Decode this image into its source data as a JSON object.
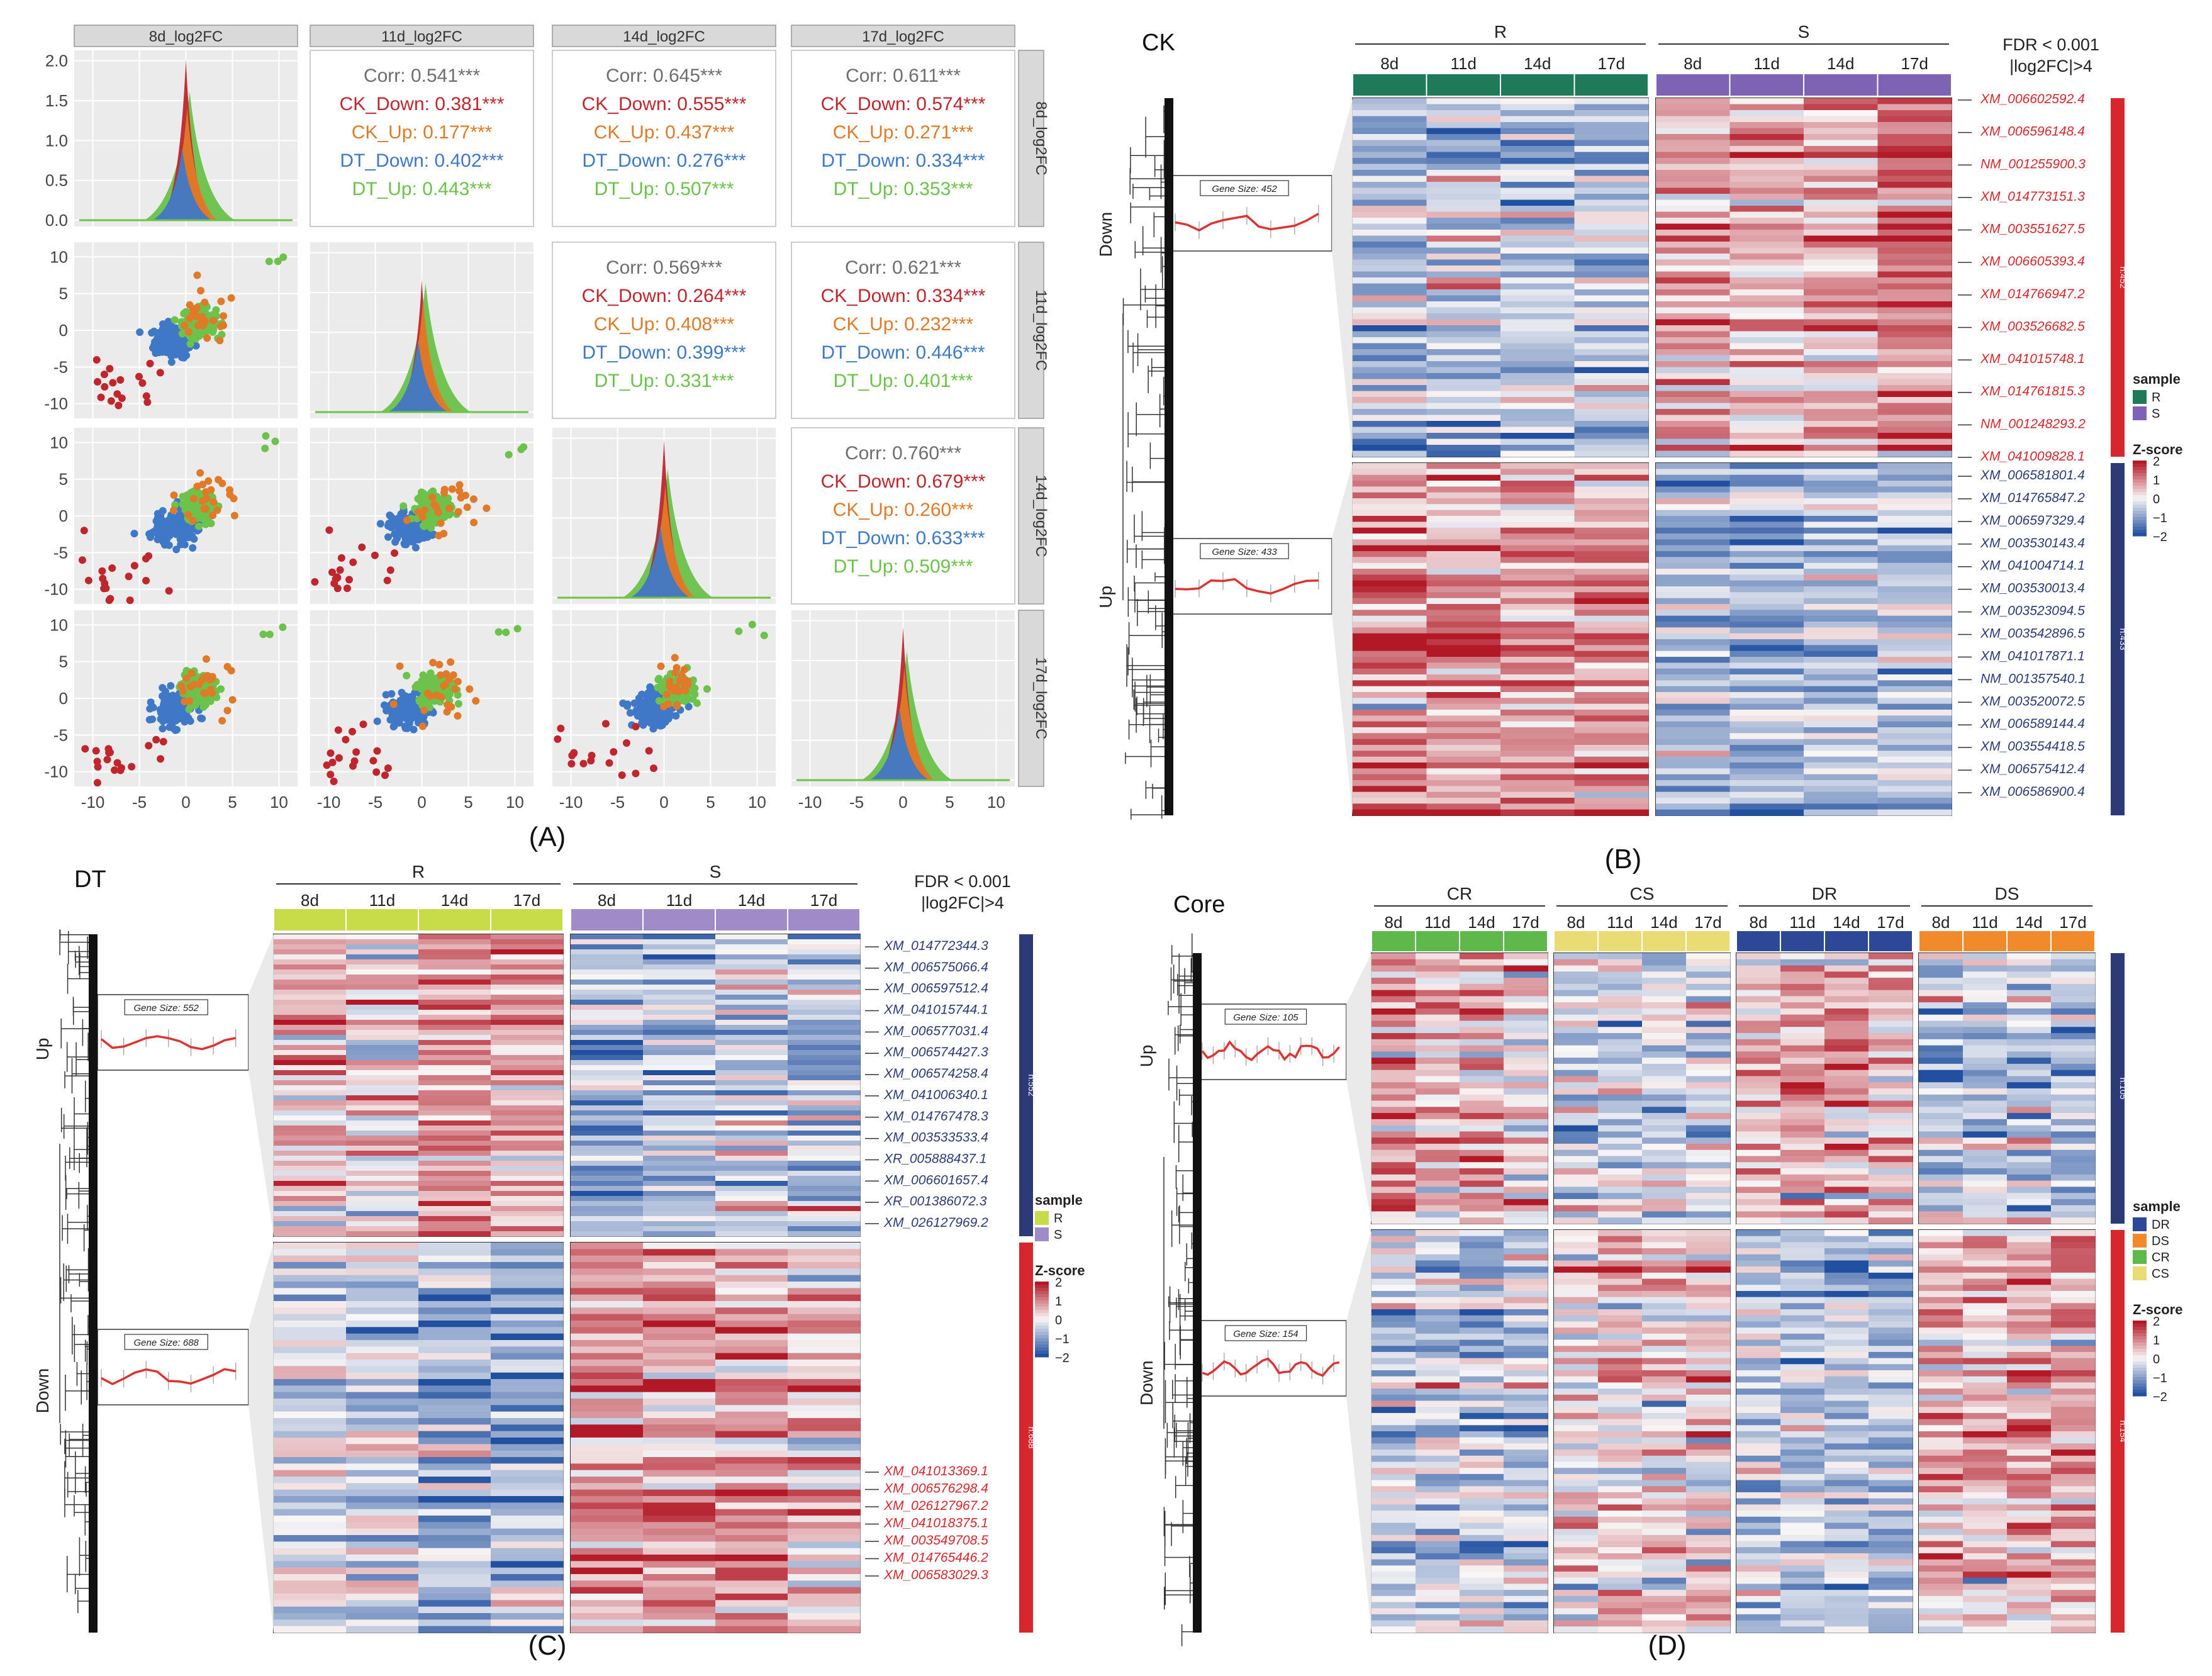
{
  "chart_data": [
    {
      "panel": "A",
      "type": "scatter-matrix",
      "caption": "(A)",
      "strip_labels": [
        "8d_log2FC",
        "11d_log2FC",
        "14d_log2FC",
        "17d_log2FC"
      ],
      "x_ticks": [
        "-10",
        "-5",
        "0",
        "5",
        "10"
      ],
      "y_ticks_diag": [
        "2.0",
        "1.5",
        "1.0",
        "0.5",
        "0.0"
      ],
      "y_ticks": [
        "10",
        "5",
        "0",
        "-5",
        "-10"
      ],
      "xlim": [
        -12,
        12
      ],
      "ylim": [
        -12,
        12
      ],
      "series_colors": {
        "CK_Down": "#c0262d",
        "CK_Up": "#e07a28",
        "DT_Down": "#3f78c6",
        "DT_Up": "#6cc24a",
        "Corr": "#6e6e6e"
      },
      "correlations": [
        {
          "row": 0,
          "col": 1,
          "lines": [
            {
              "label": "Corr: 0.541***",
              "group": "Corr"
            },
            {
              "label": "CK_Down: 0.381***",
              "group": "CK_Down"
            },
            {
              "label": "CK_Up: 0.177***",
              "group": "CK_Up"
            },
            {
              "label": "DT_Down: 0.402***",
              "group": "DT_Down"
            },
            {
              "label": "DT_Up: 0.443***",
              "group": "DT_Up"
            }
          ]
        },
        {
          "row": 0,
          "col": 2,
          "lines": [
            {
              "label": "Corr: 0.645***",
              "group": "Corr"
            },
            {
              "label": "CK_Down: 0.555***",
              "group": "CK_Down"
            },
            {
              "label": "CK_Up: 0.437***",
              "group": "CK_Up"
            },
            {
              "label": "DT_Down: 0.276***",
              "group": "DT_Down"
            },
            {
              "label": "DT_Up: 0.507***",
              "group": "DT_Up"
            }
          ]
        },
        {
          "row": 0,
          "col": 3,
          "lines": [
            {
              "label": "Corr: 0.611***",
              "group": "Corr"
            },
            {
              "label": "CK_Down: 0.574***",
              "group": "CK_Down"
            },
            {
              "label": "CK_Up: 0.271***",
              "group": "CK_Up"
            },
            {
              "label": "DT_Down: 0.334***",
              "group": "DT_Down"
            },
            {
              "label": "DT_Up: 0.353***",
              "group": "DT_Up"
            }
          ]
        },
        {
          "row": 1,
          "col": 2,
          "lines": [
            {
              "label": "Corr: 0.569***",
              "group": "Corr"
            },
            {
              "label": "CK_Down: 0.264***",
              "group": "CK_Down"
            },
            {
              "label": "CK_Up: 0.408***",
              "group": "CK_Up"
            },
            {
              "label": "DT_Down: 0.399***",
              "group": "DT_Down"
            },
            {
              "label": "DT_Up: 0.331***",
              "group": "DT_Up"
            }
          ]
        },
        {
          "row": 1,
          "col": 3,
          "lines": [
            {
              "label": "Corr: 0.621***",
              "group": "Corr"
            },
            {
              "label": "CK_Down: 0.334***",
              "group": "CK_Down"
            },
            {
              "label": "CK_Up: 0.232***",
              "group": "CK_Up"
            },
            {
              "label": "DT_Down: 0.446***",
              "group": "DT_Down"
            },
            {
              "label": "DT_Up: 0.401***",
              "group": "DT_Up"
            }
          ]
        },
        {
          "row": 2,
          "col": 3,
          "lines": [
            {
              "label": "Corr: 0.760***",
              "group": "Corr"
            },
            {
              "label": "CK_Down: 0.679***",
              "group": "CK_Down"
            },
            {
              "label": "CK_Up: 0.260***",
              "group": "CK_Up"
            },
            {
              "label": "DT_Down: 0.633***",
              "group": "DT_Down"
            },
            {
              "label": "DT_Up: 0.509***",
              "group": "DT_Up"
            }
          ]
        }
      ]
    },
    {
      "panel": "B",
      "type": "heatmap",
      "title": "CK",
      "caption": "(B)",
      "group_labels": [
        "R",
        "S"
      ],
      "time_labels": [
        "8d",
        "11d",
        "14d",
        "17d"
      ],
      "annotation_colors": [
        "#1e7a58",
        "#1e7a58",
        "#1e7a58",
        "#1e7a58",
        "#7e62b3",
        "#7e62b3",
        "#7e62b3",
        "#7e62b3"
      ],
      "fdr_text": [
        "FDR < 0.001",
        "|log2FC|>4"
      ],
      "clusters": [
        {
          "name": "Down",
          "gene_size": "Gene Size: 452",
          "n_label": "n:452",
          "color": "#d7262e",
          "rows": 60,
          "pattern": [
            -0.7,
            -0.6,
            -0.7,
            -0.5,
            0.6,
            0.6,
            0.6,
            1.1
          ]
        },
        {
          "name": "Up",
          "gene_size": "Gene Size: 433",
          "n_label": "n:433",
          "color": "#2c3a78",
          "rows": 60,
          "pattern": [
            1.0,
            0.9,
            1.0,
            0.8,
            -0.7,
            -0.9,
            -0.6,
            -0.6
          ]
        }
      ],
      "gene_labels_top": {
        "color": "#d7262e",
        "items": [
          "XM_006602592.4",
          "XM_006596148.4",
          "NM_001255900.3",
          "XM_014773151.3",
          "XM_003551627.5",
          "XM_006605393.4",
          "XM_014766947.2",
          "XM_003526682.5",
          "XM_041015748.1",
          "XM_014761815.3",
          "NM_001248293.2",
          "XM_041009828.1"
        ]
      },
      "gene_labels_bottom": {
        "color": "#2c3a78",
        "items": [
          "XM_006581801.4",
          "XM_014765847.2",
          "XM_006597329.4",
          "XM_003530143.4",
          "XM_041004714.1",
          "XM_003530013.4",
          "XM_003523094.5",
          "XM_003542896.5",
          "XM_041017871.1",
          "NM_001357540.1",
          "XM_003520072.5",
          "XM_006589144.4",
          "XM_003554418.5",
          "XM_006575412.4",
          "XM_006586900.4"
        ]
      },
      "legend": {
        "sample_title": "sample",
        "sample_items": [
          {
            "label": "R",
            "color": "#1e7a58"
          },
          {
            "label": "S",
            "color": "#7e62b3"
          }
        ],
        "zscore_title": "Z-score",
        "zscore_ticks": [
          "2",
          "1",
          "0",
          "−1",
          "−2"
        ]
      }
    },
    {
      "panel": "C",
      "type": "heatmap",
      "title": "DT",
      "caption": "(C)",
      "group_labels": [
        "R",
        "S"
      ],
      "time_labels": [
        "8d",
        "11d",
        "14d",
        "17d"
      ],
      "annotation_colors": [
        "#c8dc4a",
        "#c8dc4a",
        "#c8dc4a",
        "#c8dc4a",
        "#a08ac8",
        "#a08ac8",
        "#a08ac8",
        "#a08ac8"
      ],
      "fdr_text": [
        "FDR < 0.001",
        "|log2FC|>4"
      ],
      "clusters": [
        {
          "name": "Up",
          "gene_size": "Gene Size: 552",
          "n_label": "n:552",
          "color": "#2c3a78",
          "rows": 60,
          "pattern": [
            0.4,
            0.3,
            0.9,
            0.9,
            -0.7,
            -0.7,
            -0.3,
            -0.6
          ]
        },
        {
          "name": "Down",
          "gene_size": "Gene Size: 688",
          "n_label": "n:688",
          "color": "#d7262e",
          "rows": 60,
          "pattern": [
            -0.3,
            -0.4,
            -0.8,
            -0.8,
            0.8,
            0.9,
            0.9,
            0.6
          ]
        }
      ],
      "gene_labels_top": {
        "color": "#2c3a78",
        "items": [
          "XM_014772344.3",
          "XM_006575066.4",
          "XM_006597512.4",
          "XM_041015744.1",
          "XM_006577031.4",
          "XM_006574427.3",
          "XM_006574258.4",
          "XM_041006340.1",
          "XM_014767478.3",
          "XM_003533533.4",
          "XR_005888437.1",
          "XM_006601657.4",
          "XR_001386072.3",
          "XM_026127969.2"
        ]
      },
      "gene_labels_bottom": {
        "color": "#d7262e",
        "items": [
          "XM_041013369.1",
          "XM_006576298.4",
          "XM_026127967.2",
          "XM_041018375.1",
          "XM_003549708.5",
          "XM_014765446.2",
          "XM_006583029.3"
        ]
      },
      "legend": {
        "sample_title": "sample",
        "sample_items": [
          {
            "label": "R",
            "color": "#c8dc4a"
          },
          {
            "label": "S",
            "color": "#a08ac8"
          }
        ],
        "zscore_title": "Z-score",
        "zscore_ticks": [
          "2",
          "1",
          "0",
          "−1",
          "−2"
        ]
      }
    },
    {
      "panel": "D",
      "type": "heatmap",
      "title": "Core",
      "caption": "(D)",
      "group_labels": [
        "CR",
        "CS",
        "DR",
        "DS"
      ],
      "time_labels": [
        "8d",
        "11d",
        "14d",
        "17d"
      ],
      "annotation_colors": [
        "#5fb94a",
        "#5fb94a",
        "#5fb94a",
        "#5fb94a",
        "#eadc74",
        "#eadc74",
        "#eadc74",
        "#eadc74",
        "#2e4898",
        "#2e4898",
        "#2e4898",
        "#2e4898",
        "#f08a2a",
        "#f08a2a",
        "#f08a2a",
        "#f08a2a"
      ],
      "clusters": [
        {
          "name": "Up",
          "gene_size": "Gene Size: 105",
          "n_label": "n:105",
          "color": "#2c3a78",
          "rows": 44,
          "pattern": [
            0.7,
            0.6,
            0.5,
            0.3,
            -0.3,
            -0.4,
            -0.3,
            -0.3,
            0.5,
            0.4,
            0.6,
            0.3,
            -0.5,
            -0.6,
            -0.5,
            -0.6
          ]
        },
        {
          "name": "Down",
          "gene_size": "Gene Size: 154",
          "n_label": "n:154",
          "color": "#d7262e",
          "rows": 66,
          "pattern": [
            -0.5,
            -0.5,
            -0.6,
            -0.5,
            0.2,
            0.4,
            0.3,
            0.4,
            -0.4,
            -0.5,
            -0.5,
            -0.6,
            0.4,
            0.5,
            0.6,
            0.6
          ]
        }
      ],
      "legend": {
        "sample_title": "sample",
        "sample_items": [
          {
            "label": "DR",
            "color": "#2e4898"
          },
          {
            "label": "DS",
            "color": "#f08a2a"
          },
          {
            "label": "CR",
            "color": "#5fb94a"
          },
          {
            "label": "CS",
            "color": "#eadc74"
          }
        ],
        "zscore_title": "Z-score",
        "zscore_ticks": [
          "2",
          "1",
          "0",
          "−1",
          "−2"
        ]
      }
    }
  ]
}
